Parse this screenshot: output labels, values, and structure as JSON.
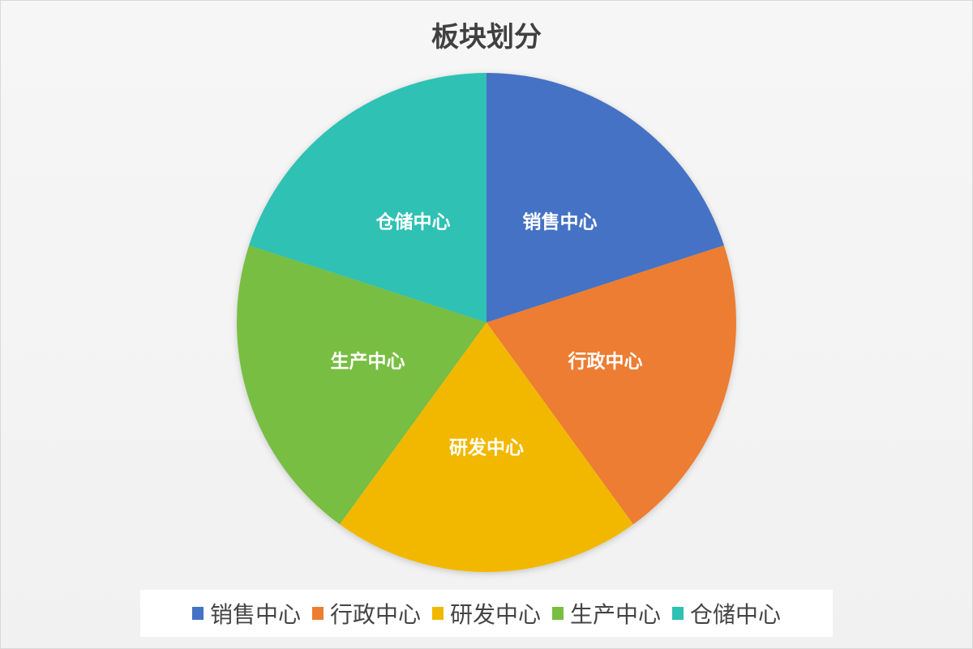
{
  "chart_data": {
    "type": "pie",
    "title": "板块划分",
    "categories": [
      "销售中心",
      "行政中心",
      "研发中心",
      "生产中心",
      "仓储中心"
    ],
    "values": [
      20,
      20,
      20,
      20,
      20
    ],
    "colors": [
      "#4472C4",
      "#ED7D31",
      "#F2B800",
      "#78BE43",
      "#2EC1B4"
    ],
    "start_angle": "top, clockwise",
    "data_labels": "category name inside slice",
    "legend": "bottom"
  }
}
